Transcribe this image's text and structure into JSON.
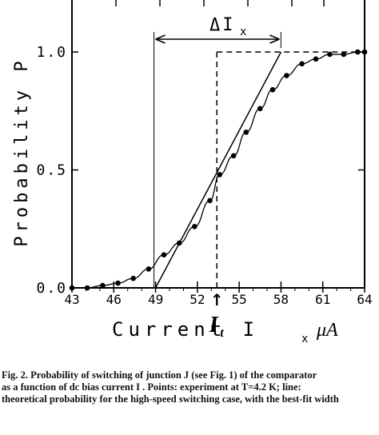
{
  "chart_data": {
    "type": "scatter",
    "xlabel": "Current I",
    "xlabel_sub": "x",
    "xlabel_unit": "μA",
    "ylabel": "Probability P",
    "xlim": [
      43,
      64
    ],
    "ylim": [
      0,
      1.2
    ],
    "x_ticks": [
      {
        "v": 43,
        "label": "43"
      },
      {
        "v": 46,
        "label": "46"
      },
      {
        "v": 49,
        "label": "49"
      },
      {
        "v": 52,
        "label": "52"
      },
      {
        "v": 55,
        "label": "55"
      },
      {
        "v": 58,
        "label": "58"
      },
      {
        "v": 61,
        "label": "61"
      },
      {
        "v": 64,
        "label": "64"
      }
    ],
    "y_ticks": [
      {
        "v": 0,
        "label": "0.0"
      },
      {
        "v": 0.5,
        "label": "0.5"
      },
      {
        "v": 1.0,
        "label": "1.0"
      }
    ],
    "points": {
      "x": [
        43.0,
        44.1,
        45.2,
        46.3,
        47.4,
        48.5,
        49.6,
        50.7,
        51.8,
        52.9,
        53.6,
        54.6,
        55.5,
        56.5,
        57.4,
        58.4,
        59.5,
        60.5,
        61.5,
        62.5,
        63.5,
        64.0
      ],
      "y": [
        0.0,
        0.0,
        0.01,
        0.02,
        0.04,
        0.08,
        0.14,
        0.19,
        0.26,
        0.37,
        0.48,
        0.56,
        0.66,
        0.76,
        0.84,
        0.9,
        0.95,
        0.97,
        0.99,
        0.99,
        1.0,
        1.0
      ]
    },
    "ideal_line": {
      "x": [
        49.0,
        58.0
      ],
      "y": [
        0.0,
        1.0
      ]
    },
    "step_line": {
      "x0": 53.4,
      "x1": 64.0,
      "y": 1.0
    },
    "delta_label": "ΔI",
    "delta_sub": "x",
    "threshold_label": "I",
    "threshold_sub": "t",
    "arrow_glyph": "↑"
  },
  "caption": {
    "lines": [
      "Fig. 2.  Probability of switching of junction J  (see Fig. 1) of the comparator",
      "as a function of dc bias current I .  Points:  experiment at T=4.2 K;  line:",
      "theoretical probability for the high-speed switching case, with the best-fit width"
    ]
  }
}
